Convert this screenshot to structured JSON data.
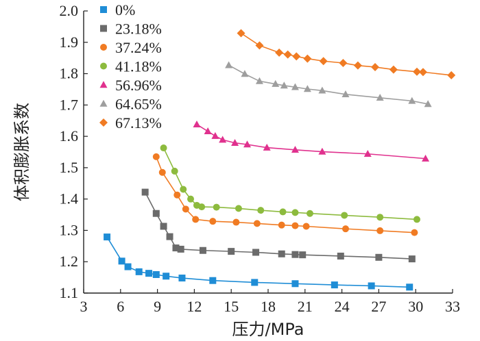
{
  "chart_data": {
    "type": "line",
    "xlabel": "压力/MPa",
    "ylabel": "体积膨胀系数",
    "xlim": [
      3,
      33
    ],
    "ylim": [
      1.1,
      2.0
    ],
    "xticks": [
      "3",
      "6",
      "9",
      "12",
      "15",
      "18",
      "21",
      "24",
      "27",
      "30",
      "33"
    ],
    "yticks": [
      "1.1",
      "1.2",
      "1.3",
      "1.4",
      "1.5",
      "1.6",
      "1.7",
      "1.8",
      "1.9",
      "2.0"
    ],
    "legend_position": "top-left",
    "series": [
      {
        "name": "0%",
        "color": "#1f8dd6",
        "marker": "square",
        "x": [
          4.9,
          6.1,
          6.6,
          7.5,
          8.3,
          8.9,
          9.7,
          11.0,
          13.5,
          16.9,
          20.2,
          23.4,
          26.4,
          29.5
        ],
        "y": [
          1.279,
          1.202,
          1.184,
          1.168,
          1.163,
          1.159,
          1.154,
          1.148,
          1.14,
          1.134,
          1.13,
          1.126,
          1.123,
          1.119
        ]
      },
      {
        "name": "23.18%",
        "color": "#6b6b6b",
        "marker": "square",
        "x": [
          8.0,
          8.9,
          9.5,
          10.0,
          10.5,
          10.9,
          12.7,
          15.0,
          17.0,
          19.1,
          20.2,
          20.8,
          23.9,
          27.0,
          29.7
        ],
        "y": [
          1.422,
          1.354,
          1.313,
          1.28,
          1.244,
          1.24,
          1.236,
          1.233,
          1.23,
          1.225,
          1.223,
          1.222,
          1.218,
          1.214,
          1.209
        ]
      },
      {
        "name": "37.24%",
        "color": "#f07b23",
        "marker": "circle",
        "x": [
          8.9,
          9.4,
          10.6,
          11.3,
          12.1,
          13.5,
          15.4,
          17.1,
          19.1,
          20.2,
          21.1,
          24.3,
          27.1,
          29.9
        ],
        "y": [
          1.535,
          1.485,
          1.413,
          1.368,
          1.335,
          1.329,
          1.326,
          1.322,
          1.317,
          1.315,
          1.313,
          1.305,
          1.299,
          1.293
        ]
      },
      {
        "name": "41.18%",
        "color": "#8dbb3e",
        "marker": "circle",
        "x": [
          9.5,
          10.4,
          11.1,
          11.7,
          12.2,
          12.6,
          13.8,
          15.6,
          17.4,
          19.2,
          20.2,
          21.4,
          24.2,
          27.1,
          30.1
        ],
        "y": [
          1.563,
          1.489,
          1.431,
          1.4,
          1.38,
          1.375,
          1.374,
          1.37,
          1.364,
          1.359,
          1.357,
          1.354,
          1.348,
          1.342,
          1.335
        ]
      },
      {
        "name": "56.96%",
        "color": "#e0318e",
        "marker": "triangle",
        "x": [
          12.2,
          13.1,
          13.7,
          14.3,
          15.3,
          16.3,
          17.9,
          20.2,
          22.4,
          26.1,
          30.8
        ],
        "y": [
          1.638,
          1.616,
          1.601,
          1.589,
          1.579,
          1.574,
          1.564,
          1.557,
          1.551,
          1.544,
          1.529
        ]
      },
      {
        "name": "64.65%",
        "color": "#9e9e9e",
        "marker": "triangle",
        "x": [
          14.8,
          16.1,
          17.3,
          18.6,
          19.3,
          20.2,
          21.2,
          22.4,
          24.3,
          27.1,
          29.7,
          31.0
        ],
        "y": [
          1.827,
          1.799,
          1.776,
          1.767,
          1.762,
          1.757,
          1.751,
          1.746,
          1.734,
          1.723,
          1.713,
          1.703
        ]
      },
      {
        "name": "67.13%",
        "color": "#f07b23",
        "marker": "diamond",
        "x": [
          15.8,
          17.3,
          18.9,
          19.6,
          20.3,
          21.2,
          22.5,
          24.1,
          25.3,
          26.7,
          28.2,
          30.1,
          30.6,
          32.9
        ],
        "y": [
          1.929,
          1.89,
          1.867,
          1.861,
          1.855,
          1.848,
          1.84,
          1.834,
          1.826,
          1.821,
          1.813,
          1.806,
          1.805,
          1.795
        ]
      }
    ]
  }
}
